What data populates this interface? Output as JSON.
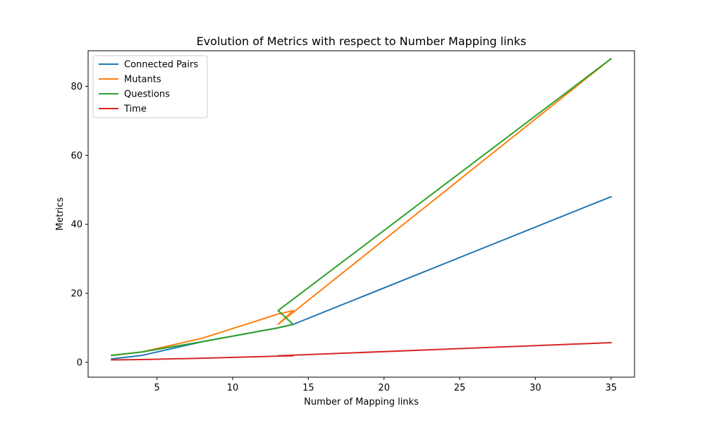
{
  "chart_data": {
    "type": "line",
    "title": "Evolution of Metrics with respect to Number Mapping links",
    "xlabel": "Number of Mapping links",
    "ylabel": "Metrics",
    "xlim": [
      0.45,
      36.55
    ],
    "ylim": [
      -4.3,
      90.3
    ],
    "xticks": [
      5,
      10,
      15,
      20,
      25,
      30,
      35
    ],
    "yticks": [
      0,
      20,
      40,
      60,
      80
    ],
    "grid": false,
    "legend_position": "top-left",
    "series": [
      {
        "name": "Connected Pairs",
        "color": "#1f77b4",
        "points": [
          [
            2,
            1
          ],
          [
            4,
            2
          ],
          [
            8,
            6
          ],
          [
            13,
            10
          ],
          [
            14,
            11
          ],
          [
            35,
            48
          ]
        ]
      },
      {
        "name": "Mutants",
        "color": "#ff7f0e",
        "points": [
          [
            2,
            2
          ],
          [
            4,
            3
          ],
          [
            8,
            7
          ],
          [
            13,
            14
          ],
          [
            14,
            15
          ],
          [
            13,
            11
          ],
          [
            35,
            88
          ]
        ]
      },
      {
        "name": "Questions",
        "color": "#2ca02c",
        "points": [
          [
            2,
            2
          ],
          [
            4,
            3
          ],
          [
            8,
            6
          ],
          [
            13,
            10
          ],
          [
            14,
            11
          ],
          [
            13,
            15
          ],
          [
            35,
            88
          ]
        ]
      },
      {
        "name": "Time",
        "color": "#d62728",
        "points": [
          [
            2,
            0.7
          ],
          [
            4,
            0.8
          ],
          [
            8,
            1.2
          ],
          [
            13,
            1.8
          ],
          [
            14,
            1.9
          ],
          [
            13,
            1.9
          ],
          [
            35,
            5.7
          ]
        ]
      }
    ]
  }
}
